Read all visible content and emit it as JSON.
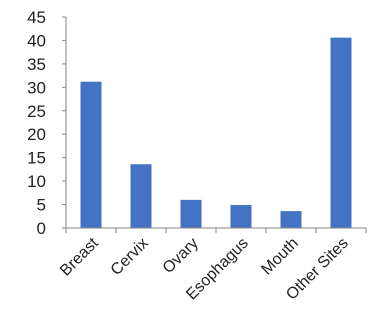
{
  "chart_data": {
    "type": "bar",
    "categories": [
      "Breast",
      "Cervix",
      "Ovary",
      "Esophagus",
      "Mouth",
      "Other Sites"
    ],
    "values": [
      31.2,
      13.6,
      6.0,
      4.9,
      3.6,
      40.6
    ],
    "ylim": [
      0,
      45
    ],
    "yticks": [
      0,
      5,
      10,
      15,
      20,
      25,
      30,
      35,
      40,
      45
    ],
    "grid": false,
    "legend": "none",
    "bar_color": "#4472C4",
    "axis_color": "#868686"
  }
}
